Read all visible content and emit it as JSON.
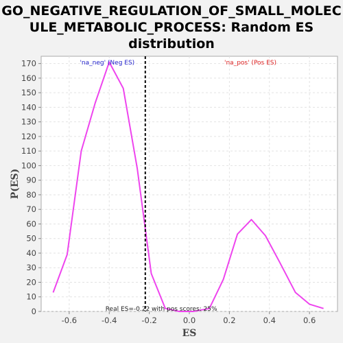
{
  "chart_data": {
    "type": "line",
    "title_lines": [
      "GO_NEGATIVE_REGULATION_OF_SMALL_MOLEC",
      "ULE_METABOLIC_PROCESS: Random ES",
      "distribution"
    ],
    "xlabel": "ES",
    "ylabel": "P(ES)",
    "xlim": [
      -0.74,
      0.74
    ],
    "ylim": [
      0,
      175
    ],
    "x_ticks": [
      -0.6,
      -0.4,
      -0.2,
      0.0,
      0.2,
      0.4,
      0.6
    ],
    "x_tick_labels": [
      "-0.6",
      "-0.4",
      "-0.2",
      "0.0",
      "0.2",
      "0.4",
      "0.6"
    ],
    "y_ticks": [
      0,
      10,
      20,
      30,
      40,
      50,
      60,
      70,
      80,
      90,
      100,
      110,
      120,
      130,
      140,
      150,
      160,
      170
    ],
    "grid": true,
    "series": [
      {
        "color": "#ee44ee",
        "x": [
          -0.68,
          -0.61,
          -0.54,
          -0.47,
          -0.4,
          -0.33,
          -0.26,
          -0.19,
          -0.12,
          -0.05,
          0.02,
          0.1,
          0.17,
          0.24,
          0.31,
          0.38,
          0.45,
          0.53,
          0.6,
          0.67
        ],
        "y": [
          13,
          39,
          110,
          143,
          171,
          153,
          98,
          26,
          2,
          0,
          0,
          2,
          22,
          53,
          63,
          52,
          34,
          13,
          5,
          2
        ]
      }
    ],
    "real_es": -0.22,
    "annotations": {
      "neg_label": "'na_neg' (Neg ES)",
      "neg_color": "#2222cc",
      "pos_label": "'na_pos' (Pos ES)",
      "pos_color": "#dd2222",
      "bottom_text": "Real ES=-0.22 with pos scores: 25%"
    }
  }
}
